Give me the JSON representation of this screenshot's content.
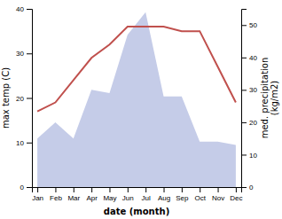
{
  "chart_data": {
    "type": "line",
    "categories": [
      "Jan",
      "Feb",
      "Mar",
      "Apr",
      "May",
      "Jun",
      "Jul",
      "Aug",
      "Sep",
      "Oct",
      "Nov",
      "Dec"
    ],
    "xlabel": "date (month)",
    "ylabel": "max temp (C)",
    "y2label": "med. precipitation\n(kg/m2)",
    "series": [
      {
        "type": "area",
        "axis": "y2",
        "color": "#c5cce8",
        "values": [
          15,
          20,
          15,
          30,
          29,
          47,
          54,
          28,
          28,
          14,
          14,
          13
        ]
      },
      {
        "type": "line",
        "color": "#c0504d",
        "values": [
          17,
          19,
          24,
          29,
          32,
          36,
          36,
          36,
          35,
          35,
          27,
          19
        ]
      }
    ],
    "ylim": [
      0,
      40
    ],
    "yticks": [
      0,
      10,
      20,
      30,
      40
    ],
    "y2lim": [
      0,
      55
    ],
    "y2ticks": [
      0,
      10,
      20,
      30,
      40,
      50
    ],
    "grid": false
  }
}
